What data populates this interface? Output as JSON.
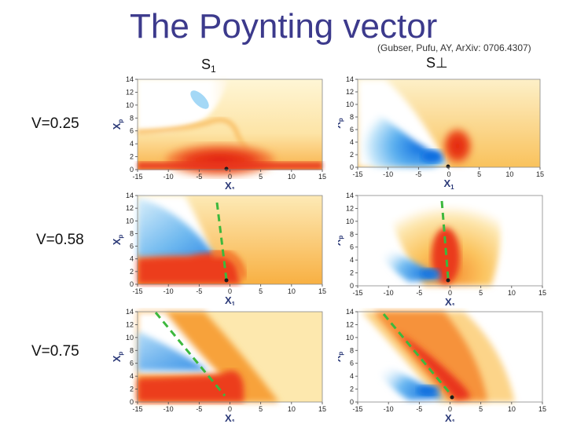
{
  "slide": {
    "title": "The Poynting vector",
    "citation": "(Gubser, Pufu, AY, ArXiv: 0706.4307)",
    "col_left_main": "S",
    "col_left_sub": "1",
    "col_right": "S⊥",
    "rows": [
      {
        "label": "V=0.25"
      },
      {
        "label": "V=0.58"
      },
      {
        "label": "V=0.75"
      }
    ]
  },
  "colors": {
    "title": "#3c3a8c",
    "red": "#e8351a",
    "orange": "#f8a838",
    "yellow": "#fde7ad",
    "blue": "#2f8ee6",
    "light_blue": "#a9d8f7",
    "guide_line": "#3db83d",
    "axis_label": "#2c3a78"
  },
  "chart_data": [
    {
      "panel": "V=0.25 S1",
      "type": "heatmap",
      "xlabel": "X1",
      "ylabel": "Xp",
      "xticks": [
        "-15",
        "-10",
        "-5",
        "0",
        "5",
        "10",
        "15"
      ],
      "yticks": [
        "0",
        "2",
        "4",
        "6",
        "8",
        "10",
        "12",
        "14"
      ],
      "xlim": [
        -15,
        15
      ],
      "ylim": [
        0,
        14
      ],
      "guide_line": false
    },
    {
      "panel": "V=0.25 S⊥",
      "type": "heatmap",
      "xlabel": "X1",
      "ylabel": "Xp",
      "xticks": [
        "-15",
        "-10",
        "-5",
        "0",
        "5",
        "10",
        "15"
      ],
      "yticks": [
        "0",
        "2",
        "4",
        "6",
        "8",
        "10",
        "12",
        "14"
      ],
      "xlim": [
        -15,
        15
      ],
      "ylim": [
        0,
        14
      ],
      "guide_line": false
    },
    {
      "panel": "V=0.58 S1",
      "type": "heatmap",
      "xlabel": "X1",
      "ylabel": "Xp",
      "xticks": [
        "-15",
        "-10",
        "-5",
        "0",
        "5",
        "10",
        "15"
      ],
      "yticks": [
        "0",
        "2",
        "4",
        "6",
        "8",
        "10",
        "12",
        "14"
      ],
      "xlim": [
        -15,
        15
      ],
      "ylim": [
        0,
        14
      ],
      "guide_line": true
    },
    {
      "panel": "V=0.58 S⊥",
      "type": "heatmap",
      "xlabel": "X1",
      "ylabel": "Xp",
      "xticks": [
        "-15",
        "-10",
        "-5",
        "0",
        "5",
        "10",
        "15"
      ],
      "yticks": [
        "0",
        "2",
        "4",
        "6",
        "8",
        "10",
        "12",
        "14"
      ],
      "xlim": [
        -15,
        15
      ],
      "ylim": [
        0,
        14
      ],
      "guide_line": true
    },
    {
      "panel": "V=0.75 S1",
      "type": "heatmap",
      "xlabel": "X1",
      "ylabel": "Xp",
      "xticks": [
        "-15",
        "-10",
        "-5",
        "0",
        "5",
        "10",
        "15"
      ],
      "yticks": [
        "0",
        "2",
        "4",
        "6",
        "8",
        "10",
        "12",
        "14"
      ],
      "xlim": [
        -15,
        15
      ],
      "ylim": [
        0,
        14
      ],
      "guide_line": true
    },
    {
      "panel": "V=0.75 S⊥",
      "type": "heatmap",
      "xlabel": "X1",
      "ylabel": "Xp",
      "xticks": [
        "-15",
        "-10",
        "-5",
        "0",
        "5",
        "10",
        "15"
      ],
      "yticks": [
        "0",
        "2",
        "4",
        "6",
        "8",
        "10",
        "12",
        "14"
      ],
      "xlim": [
        -15,
        15
      ],
      "ylim": [
        0,
        14
      ],
      "guide_line": true
    }
  ]
}
